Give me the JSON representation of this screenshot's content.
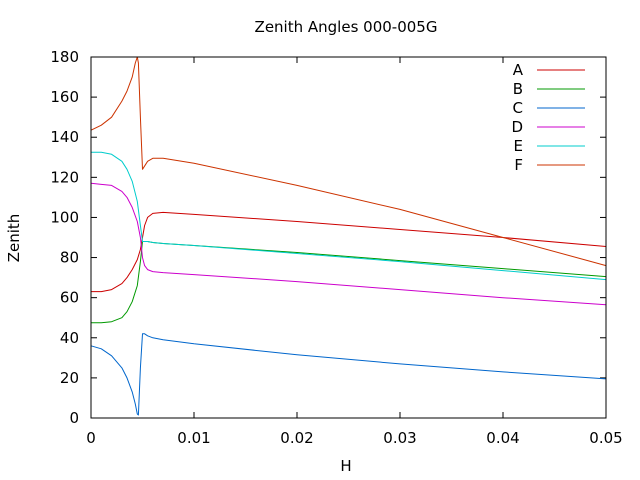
{
  "chart_data": {
    "type": "line",
    "title": "Zenith Angles 000-005G",
    "xlabel": "H",
    "ylabel": "Zenith",
    "xlim": [
      0,
      0.05
    ],
    "ylim": [
      0,
      180
    ],
    "xticks": [
      "0",
      "0.01",
      "0.02",
      "0.03",
      "0.04",
      "0.05"
    ],
    "yticks": [
      "0",
      "20",
      "40",
      "60",
      "80",
      "100",
      "120",
      "140",
      "160",
      "180"
    ],
    "grid": false,
    "legend_position": "top-right",
    "series": [
      {
        "name": "A",
        "color": "#cc0000",
        "x": [
          0,
          0.001,
          0.002,
          0.003,
          0.0035,
          0.004,
          0.0045,
          0.0048,
          0.005,
          0.0052,
          0.0055,
          0.006,
          0.007,
          0.01,
          0.02,
          0.03,
          0.04,
          0.05
        ],
        "y": [
          63,
          63,
          64,
          67,
          70,
          74,
          79,
          84,
          90,
          96,
          100,
          102,
          102.5,
          101.5,
          98,
          94,
          90,
          85.5
        ]
      },
      {
        "name": "B",
        "color": "#009900",
        "x": [
          0,
          0.001,
          0.002,
          0.003,
          0.0035,
          0.004,
          0.0045,
          0.0048,
          0.005,
          0.0052,
          0.0055,
          0.006,
          0.007,
          0.01,
          0.02,
          0.03,
          0.04,
          0.05
        ],
        "y": [
          47.5,
          47.5,
          48,
          50,
          53,
          58,
          66,
          78,
          88,
          88,
          88,
          87.5,
          87,
          86,
          82.5,
          78.5,
          74.5,
          70.5
        ]
      },
      {
        "name": "C",
        "color": "#0066cc",
        "x": [
          0,
          0.001,
          0.002,
          0.003,
          0.0035,
          0.004,
          0.0043,
          0.0045,
          0.0046,
          0.0048,
          0.005,
          0.0052,
          0.0055,
          0.006,
          0.007,
          0.01,
          0.02,
          0.03,
          0.04,
          0.05
        ],
        "y": [
          36,
          34.5,
          31,
          25,
          20,
          13,
          7,
          2,
          1.5,
          25,
          42,
          42,
          41,
          40,
          39,
          37,
          31.5,
          27,
          23,
          19.5
        ]
      },
      {
        "name": "D",
        "color": "#cc00cc",
        "x": [
          0,
          0.001,
          0.002,
          0.003,
          0.0035,
          0.004,
          0.0045,
          0.0048,
          0.005,
          0.0052,
          0.0055,
          0.006,
          0.007,
          0.01,
          0.02,
          0.03,
          0.04,
          0.05
        ],
        "y": [
          117,
          116.5,
          116,
          113,
          110,
          105,
          98,
          90,
          80,
          76,
          74,
          73,
          72.5,
          71.5,
          68,
          64,
          60,
          56.5
        ]
      },
      {
        "name": "E",
        "color": "#00cccc",
        "x": [
          0,
          0.001,
          0.002,
          0.003,
          0.0035,
          0.004,
          0.0045,
          0.0048,
          0.005,
          0.0052,
          0.0055,
          0.006,
          0.007,
          0.01,
          0.02,
          0.03,
          0.04,
          0.05
        ],
        "y": [
          132.5,
          132.5,
          131.5,
          128,
          124,
          118,
          108,
          96,
          88,
          88,
          88,
          87.5,
          87,
          86,
          82,
          78,
          73.5,
          69
        ]
      },
      {
        "name": "F",
        "color": "#cc3300",
        "x": [
          0,
          0.001,
          0.002,
          0.003,
          0.0035,
          0.004,
          0.0043,
          0.0045,
          0.0046,
          0.0048,
          0.005,
          0.0055,
          0.006,
          0.007,
          0.01,
          0.02,
          0.03,
          0.04,
          0.05
        ],
        "y": [
          143.5,
          146,
          150,
          158,
          163,
          170,
          177,
          180,
          177,
          150,
          124,
          128,
          129.5,
          129.5,
          127,
          116,
          104,
          90,
          76
        ]
      }
    ]
  }
}
